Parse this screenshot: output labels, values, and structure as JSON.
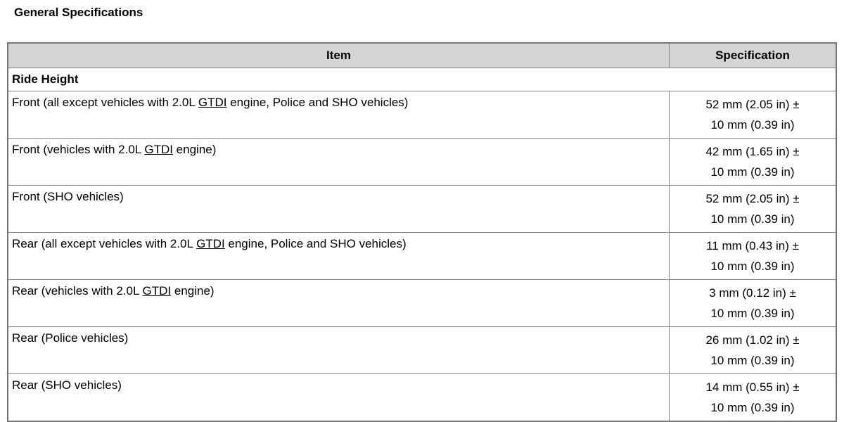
{
  "title": "General Specifications",
  "headers": {
    "item": "Item",
    "spec": "Specification"
  },
  "group": "Ride Height",
  "rows": [
    {
      "pre": "Front (all except vehicles with 2.0L ",
      "abbr": "GTDI",
      "post": " engine, Police and SHO vehicles)",
      "spec1": "52 mm (2.05 in) ±",
      "spec2": "10 mm (0.39 in)"
    },
    {
      "pre": "Front (vehicles with 2.0L ",
      "abbr": "GTDI",
      "post": " engine)",
      "spec1": "42 mm (1.65 in) ±",
      "spec2": "10 mm (0.39 in)"
    },
    {
      "pre": "Front (SHO vehicles)",
      "abbr": "",
      "post": "",
      "spec1": "52 mm (2.05 in) ±",
      "spec2": "10 mm (0.39 in)"
    },
    {
      "pre": "Rear (all except vehicles with 2.0L ",
      "abbr": "GTDI",
      "post": " engine, Police and SHO vehicles)",
      "spec1": "11 mm (0.43 in) ±",
      "spec2": "10 mm (0.39 in)"
    },
    {
      "pre": "Rear (vehicles with 2.0L ",
      "abbr": "GTDI",
      "post": " engine)",
      "spec1": "3 mm (0.12 in) ±",
      "spec2": "10 mm (0.39 in)"
    },
    {
      "pre": "Rear (Police vehicles)",
      "abbr": "",
      "post": "",
      "spec1": "26 mm (1.02 in) ±",
      "spec2": "10 mm (0.39 in)"
    },
    {
      "pre": "Rear (SHO vehicles)",
      "abbr": "",
      "post": "",
      "spec1": "14 mm (0.55 in) ±",
      "spec2": "10 mm (0.39 in)"
    }
  ]
}
